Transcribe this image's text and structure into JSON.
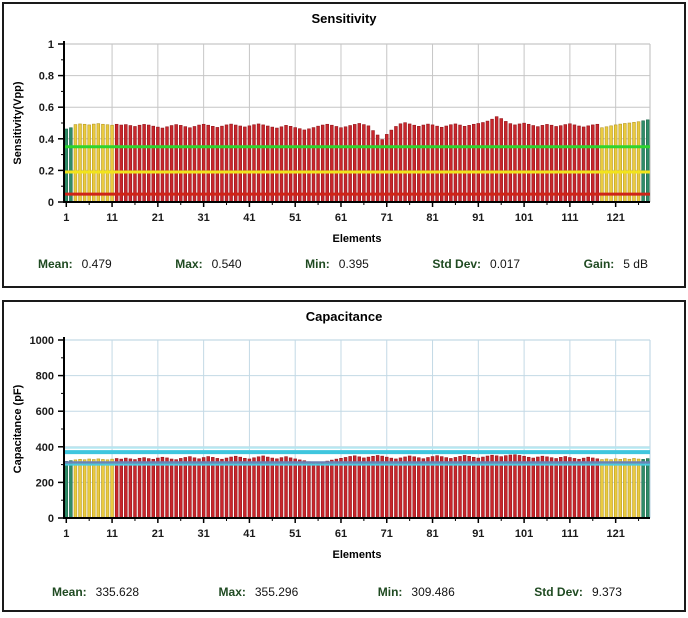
{
  "colors": {
    "stat_label": "#1f4a21",
    "panel_border": "#1a1a1a",
    "bar_red": "#c8262c",
    "bar_yellow": "#eacb3f",
    "bar_teal": "#2f8c68"
  },
  "panels": [
    {
      "name": "sensitivity",
      "stats": [
        {
          "label": "Mean:",
          "value": "0.479"
        },
        {
          "label": "Max:",
          "value": "0.540"
        },
        {
          "label": "Min:",
          "value": "0.395"
        },
        {
          "label": "Std Dev:",
          "value": "0.017"
        },
        {
          "label": "Gain:",
          "value": "5 dB"
        }
      ]
    },
    {
      "name": "capacitance",
      "stats": [
        {
          "label": "Mean:",
          "value": "335.628"
        },
        {
          "label": "Max:",
          "value": "355.296"
        },
        {
          "label": "Min:",
          "value": "309.486"
        },
        {
          "label": "Std Dev:",
          "value": "9.373"
        }
      ]
    }
  ],
  "chart_data": [
    {
      "type": "bar",
      "title": "Sensitivity",
      "xlabel": "Elements",
      "ylabel": "Sensitivity(Vpp)",
      "ylim": [
        0,
        1
      ],
      "yticks": [
        0,
        0.2,
        0.4,
        0.6,
        0.8,
        1
      ],
      "y_minor_step": 0.1,
      "xticks": [
        1,
        11,
        21,
        31,
        41,
        51,
        61,
        71,
        81,
        91,
        101,
        111,
        121
      ],
      "n_elements": 128,
      "grid_color": "#c6c6c6",
      "zones": [
        {
          "start": 1,
          "end": 2,
          "color": "#2f8c68",
          "stroke": "#20694c"
        },
        {
          "start": 3,
          "end": 11,
          "color": "#eacb3f",
          "stroke": "#b8981f"
        },
        {
          "start": 12,
          "end": 117,
          "color": "#c8262c",
          "stroke": "#951418"
        },
        {
          "start": 118,
          "end": 126,
          "color": "#eacb3f",
          "stroke": "#b8981f"
        },
        {
          "start": 127,
          "end": 128,
          "color": "#2f8c68",
          "stroke": "#20694c"
        }
      ],
      "ref_lines": [
        {
          "value": 0.35,
          "color": "#2ed52e",
          "width": 3
        },
        {
          "value": 0.19,
          "color": "#f2e41c",
          "width": 3
        },
        {
          "value": 0.05,
          "color": "#ce2418",
          "width": 3
        }
      ],
      "values": [
        0.462,
        0.47,
        0.49,
        0.494,
        0.492,
        0.488,
        0.493,
        0.496,
        0.492,
        0.489,
        0.486,
        0.492,
        0.487,
        0.49,
        0.484,
        0.478,
        0.486,
        0.491,
        0.487,
        0.48,
        0.474,
        0.468,
        0.476,
        0.484,
        0.49,
        0.485,
        0.477,
        0.47,
        0.478,
        0.487,
        0.492,
        0.486,
        0.479,
        0.472,
        0.48,
        0.488,
        0.493,
        0.487,
        0.481,
        0.475,
        0.482,
        0.489,
        0.494,
        0.488,
        0.481,
        0.474,
        0.468,
        0.476,
        0.485,
        0.479,
        0.471,
        0.464,
        0.456,
        0.463,
        0.471,
        0.48,
        0.487,
        0.492,
        0.486,
        0.478,
        0.47,
        0.476,
        0.484,
        0.491,
        0.497,
        0.49,
        0.482,
        0.452,
        0.424,
        0.395,
        0.428,
        0.455,
        0.478,
        0.495,
        0.502,
        0.494,
        0.486,
        0.479,
        0.487,
        0.493,
        0.488,
        0.48,
        0.473,
        0.481,
        0.489,
        0.494,
        0.487,
        0.479,
        0.485,
        0.492,
        0.497,
        0.503,
        0.512,
        0.524,
        0.54,
        0.528,
        0.51,
        0.496,
        0.488,
        0.494,
        0.499,
        0.492,
        0.484,
        0.477,
        0.485,
        0.491,
        0.486,
        0.478,
        0.483,
        0.49,
        0.495,
        0.488,
        0.481,
        0.475,
        0.482,
        0.488,
        0.492,
        0.47,
        0.476,
        0.482,
        0.488,
        0.493,
        0.497,
        0.5,
        0.504,
        0.508,
        0.514,
        0.52
      ]
    },
    {
      "type": "bar",
      "title": "Capacitance",
      "xlabel": "Elements",
      "ylabel": "Capacitance (pF)",
      "ylim": [
        0,
        1000
      ],
      "yticks": [
        0,
        200,
        400,
        600,
        800,
        1000
      ],
      "y_minor_step": 100,
      "xticks": [
        1,
        11,
        21,
        31,
        41,
        51,
        61,
        71,
        81,
        91,
        101,
        111,
        121
      ],
      "n_elements": 128,
      "grid_color": "#c3d9e5",
      "zones": [
        {
          "start": 1,
          "end": 2,
          "color": "#2f8c68",
          "stroke": "#20694c"
        },
        {
          "start": 3,
          "end": 11,
          "color": "#eacb3f",
          "stroke": "#b8981f"
        },
        {
          "start": 12,
          "end": 117,
          "color": "#c8262c",
          "stroke": "#951418"
        },
        {
          "start": 118,
          "end": 126,
          "color": "#eacb3f",
          "stroke": "#b8981f"
        },
        {
          "start": 127,
          "end": 128,
          "color": "#2f8c68",
          "stroke": "#20694c"
        }
      ],
      "ref_lines": [
        {
          "value": 395,
          "color": "#b5e8f2",
          "width": 2
        },
        {
          "value": 370,
          "color": "#3fc6de",
          "width": 4
        },
        {
          "value": 312,
          "color": "#6a83b5",
          "width": 2.5
        },
        {
          "value": 300,
          "color": "#49cbe0",
          "width": 2
        }
      ],
      "values": [
        318.4,
        322.1,
        326.5,
        329.8,
        327.2,
        331.4,
        328.6,
        332.0,
        329.1,
        326.8,
        330.5,
        334.2,
        330.8,
        336.5,
        332.1,
        328.4,
        335.7,
        339.2,
        333.6,
        329.9,
        336.8,
        341.3,
        337.5,
        331.2,
        327.8,
        334.6,
        340.1,
        344.8,
        338.2,
        332.5,
        339.7,
        345.2,
        340.6,
        334.8,
        330.2,
        336.9,
        342.5,
        347.1,
        341.8,
        335.4,
        331.6,
        338.2,
        343.9,
        348.6,
        342.3,
        336.7,
        332.4,
        339.1,
        344.5,
        337.8,
        331.9,
        326.4,
        321.7,
        316.2,
        311.8,
        309.486,
        314.3,
        319.6,
        325.2,
        330.8,
        335.4,
        340.2,
        345.7,
        349.3,
        343.8,
        337.5,
        342.1,
        346.8,
        351.2,
        347.6,
        341.9,
        336.3,
        331.7,
        337.4,
        343.0,
        348.5,
        344.2,
        338.6,
        333.1,
        339.8,
        345.3,
        350.1,
        344.7,
        339.2,
        334.5,
        340.3,
        346.0,
        351.4,
        346.8,
        341.2,
        336.6,
        342.4,
        348.1,
        352.7,
        349.3,
        344.6,
        350.2,
        353.8,
        355.296,
        351.5,
        346.9,
        341.3,
        336.8,
        342.6,
        347.2,
        343.5,
        338.9,
        334.2,
        340.7,
        345.4,
        339.8,
        334.6,
        330.1,
        336.3,
        341.8,
        337.2,
        332.5,
        328.3,
        331.6,
        327.9,
        332.4,
        329.7,
        333.8,
        330.2,
        334.5,
        331.1,
        329.4,
        333.7
      ]
    }
  ]
}
